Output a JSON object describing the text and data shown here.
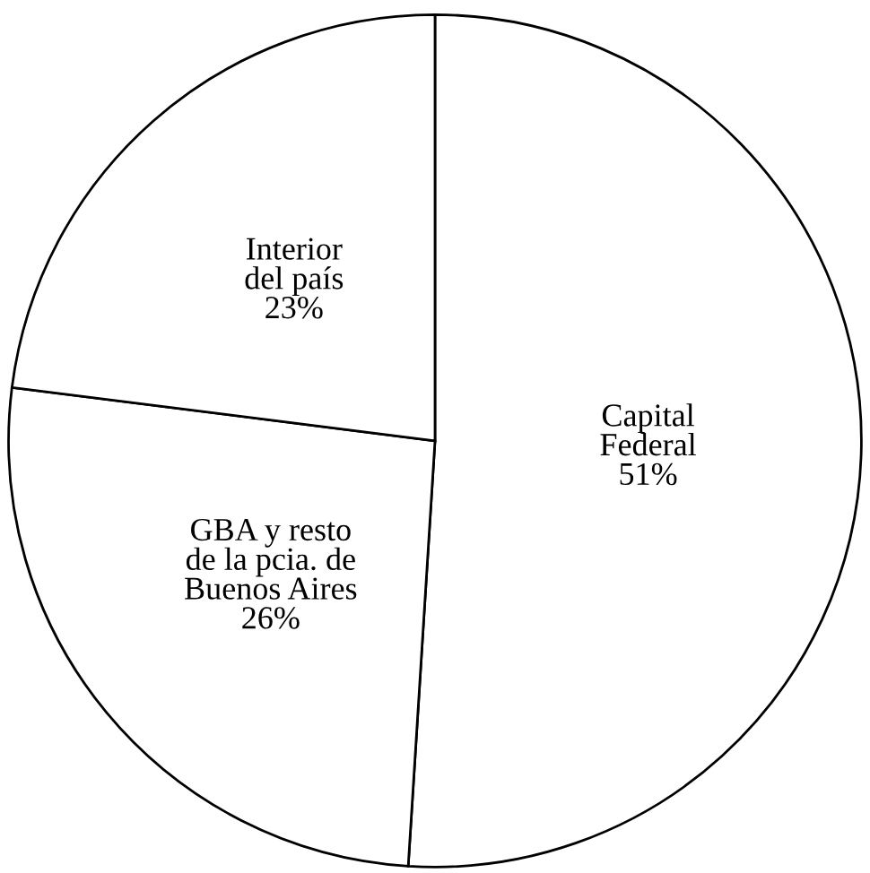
{
  "chart_data": {
    "type": "pie",
    "categories": [
      "Capital\nFederal",
      "GBA y resto\nde la pcia. de\nBuenos Aires",
      "Interior\ndel país"
    ],
    "values": [
      51,
      26,
      23
    ],
    "value_labels": [
      "51%",
      "26%",
      "23%"
    ],
    "colors": [
      "#ffffff",
      "#ffffff",
      "#ffffff"
    ]
  }
}
